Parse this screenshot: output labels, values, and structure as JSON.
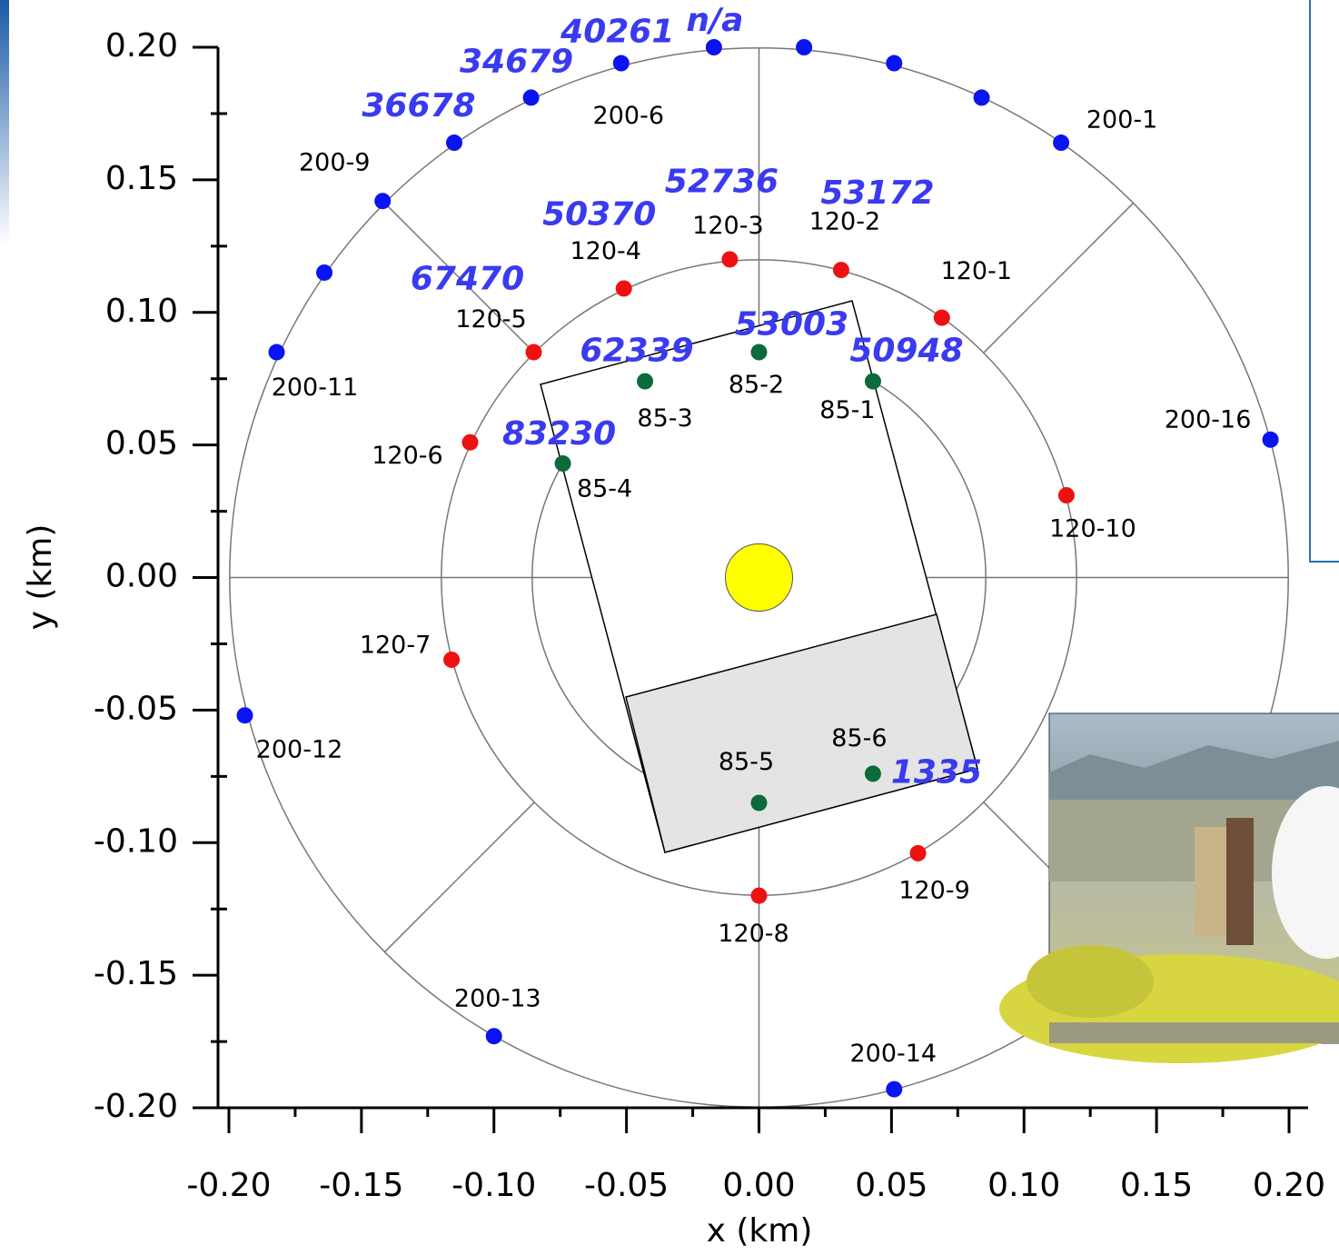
{
  "chart_data": {
    "type": "scatter",
    "xlabel": "x (km)",
    "ylabel": "y (km)",
    "xlim": [
      -0.2,
      0.2
    ],
    "ylim": [
      -0.2,
      0.2
    ],
    "xticks": [
      {
        "value": -0.2,
        "label": "-0.20"
      },
      {
        "value": -0.15,
        "label": "-0.15"
      },
      {
        "value": -0.1,
        "label": "-0.10"
      },
      {
        "value": -0.05,
        "label": "-0.05"
      },
      {
        "value": 0,
        "label": "0.00"
      },
      {
        "value": 0.05,
        "label": "0.05"
      },
      {
        "value": 0.1,
        "label": "0.10"
      },
      {
        "value": 0.15,
        "label": "0.15"
      },
      {
        "value": 0.2,
        "label": "0.20"
      }
    ],
    "yticks": [
      {
        "value": -0.2,
        "label": "-0.20"
      },
      {
        "value": -0.15,
        "label": "-0.15"
      },
      {
        "value": -0.1,
        "label": "-0.10"
      },
      {
        "value": -0.05,
        "label": "-0.05"
      },
      {
        "value": 0,
        "label": "0.00"
      },
      {
        "value": 0.05,
        "label": "0.05"
      },
      {
        "value": 0.1,
        "label": "0.10"
      },
      {
        "value": 0.15,
        "label": "0.15"
      },
      {
        "value": 0.2,
        "label": "0.20"
      }
    ],
    "series": [
      {
        "color": "#0a14f0",
        "x": [
          0.114,
          0.084,
          0.051,
          0.017,
          -0.017,
          -0.052,
          -0.086,
          -0.115,
          -0.142,
          -0.164,
          -0.182,
          -0.194,
          -0.1,
          0.051,
          0.193
        ],
        "y": [
          0.164,
          0.181,
          0.194,
          0.2,
          0.2,
          0.194,
          0.181,
          0.164,
          0.142,
          0.115,
          0.085,
          -0.052,
          -0.173,
          -0.193,
          0.052
        ],
        "labels": [
          "200-1",
          null,
          null,
          null,
          null,
          "200-6",
          null,
          null,
          "200-9",
          null,
          "200-11",
          "200-12",
          "200-13",
          "200-14",
          "200-16"
        ],
        "annotations": [
          null,
          null,
          null,
          null,
          "n/a",
          "40261",
          "34679",
          "36678",
          null,
          null,
          null,
          null,
          null,
          null,
          null
        ]
      },
      {
        "color": "#ee1111",
        "x": [
          0.069,
          0.031,
          -0.011,
          -0.051,
          -0.085,
          -0.109,
          -0.116,
          0,
          0.06,
          0.116
        ],
        "y": [
          0.098,
          0.116,
          0.12,
          0.109,
          0.085,
          0.051,
          -0.031,
          -0.12,
          -0.104,
          0.031
        ],
        "labels": [
          "120-1",
          "120-2",
          "120-3",
          "120-4",
          "120-5",
          "120-6",
          "120-7",
          "120-8",
          "120-9",
          "120-10"
        ],
        "annotations": [
          null,
          "53172",
          "52736",
          "50370",
          "67470",
          null,
          null,
          null,
          null,
          null
        ]
      },
      {
        "color": "#0b6b3a",
        "x": [
          0.043,
          0,
          -0.043,
          -0.074,
          0,
          0.043
        ],
        "y": [
          0.074,
          0.085,
          0.074,
          0.043,
          -0.085,
          -0.074
        ],
        "labels": [
          "85-1",
          "85-2",
          "85-3",
          "85-4",
          "85-5",
          "85-6"
        ],
        "annotations": [
          "50948",
          "53003",
          "62339",
          "83230",
          null,
          "1335"
        ]
      }
    ]
  }
}
